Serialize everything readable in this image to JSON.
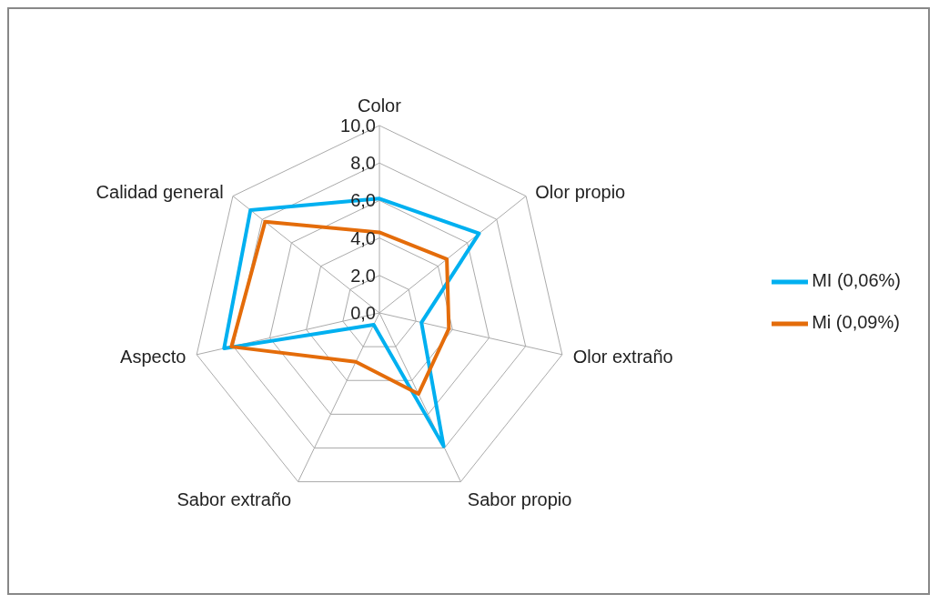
{
  "chart_data": {
    "type": "radar",
    "categories": [
      "Color",
      "Olor propio",
      "Olor extraño",
      "Sabor propio",
      "Sabor extraño",
      "Aspecto",
      "Calidad general"
    ],
    "series": [
      {
        "name": "MI (0,06%)",
        "color": "#00b0f0",
        "values": [
          6.1,
          6.8,
          2.3,
          7.9,
          0.7,
          8.5,
          8.8
        ]
      },
      {
        "name": "Mi (0,09%)",
        "color": "#e46c0a",
        "values": [
          4.3,
          4.6,
          3.8,
          4.8,
          2.9,
          8.1,
          7.8
        ]
      }
    ],
    "ylim": [
      0,
      10
    ],
    "yticks": [
      {
        "value": 0,
        "label": "0,0"
      },
      {
        "value": 2,
        "label": "2,0"
      },
      {
        "value": 4,
        "label": "4,0"
      },
      {
        "value": 6,
        "label": "6,0"
      },
      {
        "value": 8,
        "label": "8,0"
      },
      {
        "value": 10,
        "label": "10,0"
      }
    ],
    "grid": true,
    "legend": "right",
    "marker": "none"
  }
}
